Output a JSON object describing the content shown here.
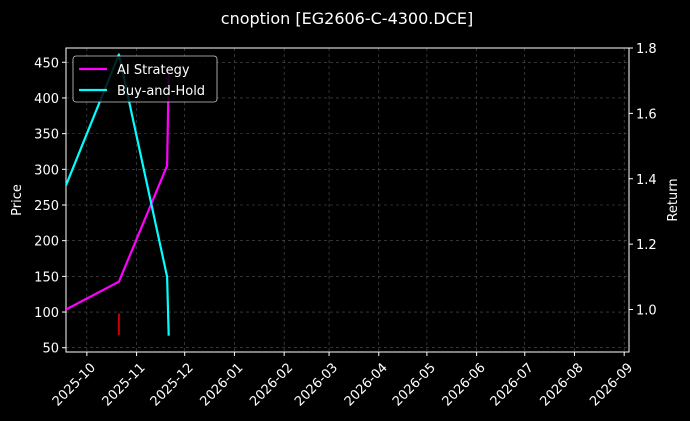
{
  "chart_data": {
    "type": "line",
    "title": "cnoption [EG2606-C-4300.DCE]",
    "ylabel_left": "Price",
    "ylabel_right": "Return",
    "x_ticks": [
      "2025-10",
      "2025-11",
      "2025-12",
      "2026-01",
      "2026-02",
      "2026-03",
      "2026-04",
      "2026-05",
      "2026-06",
      "2026-07",
      "2026-08",
      "2026-09"
    ],
    "x_range": [
      "2025-09-18",
      "2026-09-04"
    ],
    "y_left_ticks": [
      50,
      100,
      150,
      200,
      250,
      300,
      350,
      400,
      450
    ],
    "y_left_range": [
      44,
      470
    ],
    "y_right_ticks": [
      1.0,
      1.2,
      1.4,
      1.6,
      1.8
    ],
    "y_right_range": [
      0.87,
      1.8
    ],
    "grid": true,
    "legend_position": "top-left",
    "series": [
      {
        "name": "AI Strategy",
        "axis": "right",
        "color": "#ff00ff",
        "points": [
          [
            "2025-09-18",
            1.0
          ],
          [
            "2025-10-21",
            1.085
          ],
          [
            "2025-11-20",
            1.44
          ],
          [
            "2025-11-21",
            1.72
          ]
        ]
      },
      {
        "name": "Buy-and-Hold",
        "axis": "right",
        "color": "#00ffff",
        "points": [
          [
            "2025-09-18",
            1.38
          ],
          [
            "2025-10-21",
            1.78
          ],
          [
            "2025-11-20",
            1.1
          ],
          [
            "2025-11-21",
            0.92
          ]
        ]
      }
    ],
    "price_marks": [
      {
        "date": "2025-10-21",
        "low": 68,
        "high": 98,
        "color": "#ff0000"
      }
    ]
  }
}
